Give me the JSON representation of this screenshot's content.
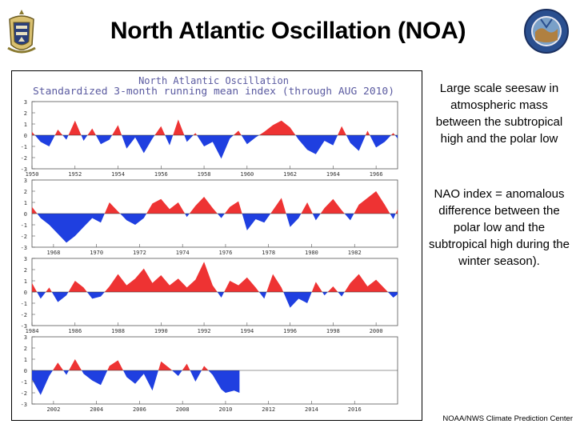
{
  "slide": {
    "title": "North Atlantic Oscillation (NOA)",
    "description_1": "Large scale seesaw in atmospheric mass between the subtropical high and the polar low",
    "description_2": "NAO index = anomalous difference between the polar low and the subtropical high during the winter season).",
    "credit": "NOAA/NWS Climate Prediction Center"
  },
  "colors": {
    "positive": "#ee3333",
    "negative": "#1f3fe0",
    "axis": "#555555",
    "title": "#5a5aa0"
  },
  "chart_data": {
    "type": "area",
    "title": "North Atlantic Oscillation",
    "subtitle": "Standardized 3-month running mean index (through AUG 2010)",
    "ylim": [
      -3,
      3
    ],
    "y_ticks": [
      3,
      2,
      1,
      0,
      -1,
      -2,
      -3
    ],
    "grid": false,
    "panels": [
      {
        "x_range": [
          1950,
          1967
        ],
        "x_tick_labels": [
          {
            "x": 1950,
            "label": "1950"
          },
          {
            "x": 1952,
            "label": "1952"
          },
          {
            "x": 1954,
            "label": "1954"
          },
          {
            "x": 1956,
            "label": "1956"
          },
          {
            "x": 1958,
            "label": "1958"
          },
          {
            "x": 1960,
            "label": "1960"
          },
          {
            "x": 1962,
            "label": "1962"
          },
          {
            "x": 1964,
            "label": "1964"
          },
          {
            "x": 1966,
            "label": "1966"
          }
        ],
        "points": [
          [
            1950.0,
            0.3
          ],
          [
            1950.4,
            -0.6
          ],
          [
            1950.8,
            -1.0
          ],
          [
            1951.2,
            0.5
          ],
          [
            1951.6,
            -0.4
          ],
          [
            1952.0,
            1.3
          ],
          [
            1952.4,
            -0.5
          ],
          [
            1952.8,
            0.6
          ],
          [
            1953.2,
            -0.8
          ],
          [
            1953.6,
            -0.4
          ],
          [
            1954.0,
            0.9
          ],
          [
            1954.4,
            -1.2
          ],
          [
            1954.8,
            -0.2
          ],
          [
            1955.2,
            -1.6
          ],
          [
            1955.6,
            -0.3
          ],
          [
            1956.0,
            0.8
          ],
          [
            1956.4,
            -0.9
          ],
          [
            1956.8,
            1.4
          ],
          [
            1957.2,
            -0.6
          ],
          [
            1957.6,
            0.2
          ],
          [
            1958.0,
            -1.0
          ],
          [
            1958.4,
            -0.6
          ],
          [
            1958.8,
            -2.1
          ],
          [
            1959.2,
            -0.3
          ],
          [
            1959.6,
            0.4
          ],
          [
            1960.0,
            -0.8
          ],
          [
            1960.4,
            -0.2
          ],
          [
            1960.8,
            0.3
          ],
          [
            1961.2,
            0.9
          ],
          [
            1961.6,
            1.3
          ],
          [
            1962.0,
            0.7
          ],
          [
            1962.4,
            -0.4
          ],
          [
            1962.8,
            -1.3
          ],
          [
            1963.2,
            -1.7
          ],
          [
            1963.6,
            -0.5
          ],
          [
            1964.0,
            -0.9
          ],
          [
            1964.4,
            0.8
          ],
          [
            1964.8,
            -0.7
          ],
          [
            1965.2,
            -1.4
          ],
          [
            1965.6,
            0.4
          ],
          [
            1966.0,
            -1.1
          ],
          [
            1966.4,
            -0.6
          ],
          [
            1966.8,
            0.2
          ],
          [
            1967.0,
            -0.3
          ]
        ]
      },
      {
        "x_range": [
          1967,
          1984
        ],
        "x_tick_labels": [
          {
            "x": 1968,
            "label": "1968"
          },
          {
            "x": 1970,
            "label": "1970"
          },
          {
            "x": 1972,
            "label": "1972"
          },
          {
            "x": 1974,
            "label": "1974"
          },
          {
            "x": 1976,
            "label": "1976"
          },
          {
            "x": 1978,
            "label": "1978"
          },
          {
            "x": 1980,
            "label": "1980"
          },
          {
            "x": 1982,
            "label": "1982"
          }
        ],
        "points": [
          [
            1967.0,
            0.6
          ],
          [
            1967.4,
            -0.4
          ],
          [
            1967.8,
            -1.0
          ],
          [
            1968.2,
            -1.8
          ],
          [
            1968.6,
            -2.6
          ],
          [
            1969.0,
            -2.0
          ],
          [
            1969.4,
            -1.2
          ],
          [
            1969.8,
            -0.4
          ],
          [
            1970.2,
            -0.8
          ],
          [
            1970.6,
            1.0
          ],
          [
            1971.0,
            0.2
          ],
          [
            1971.4,
            -0.6
          ],
          [
            1971.8,
            -1.0
          ],
          [
            1972.2,
            -0.4
          ],
          [
            1972.6,
            0.9
          ],
          [
            1973.0,
            1.3
          ],
          [
            1973.4,
            0.4
          ],
          [
            1973.8,
            1.0
          ],
          [
            1974.2,
            -0.3
          ],
          [
            1974.6,
            0.7
          ],
          [
            1975.0,
            1.5
          ],
          [
            1975.4,
            0.5
          ],
          [
            1975.8,
            -0.4
          ],
          [
            1976.2,
            0.6
          ],
          [
            1976.6,
            1.1
          ],
          [
            1977.0,
            -1.5
          ],
          [
            1977.4,
            -0.5
          ],
          [
            1977.8,
            -0.8
          ],
          [
            1978.2,
            0.3
          ],
          [
            1978.6,
            1.4
          ],
          [
            1979.0,
            -1.2
          ],
          [
            1979.4,
            -0.4
          ],
          [
            1979.8,
            1.0
          ],
          [
            1980.2,
            -0.6
          ],
          [
            1980.6,
            0.5
          ],
          [
            1981.0,
            1.3
          ],
          [
            1981.4,
            0.3
          ],
          [
            1981.8,
            -0.6
          ],
          [
            1982.2,
            0.8
          ],
          [
            1982.6,
            1.4
          ],
          [
            1983.0,
            2.0
          ],
          [
            1983.4,
            0.8
          ],
          [
            1983.8,
            -0.5
          ],
          [
            1984.0,
            0.4
          ]
        ]
      },
      {
        "x_range": [
          1984,
          2001
        ],
        "x_tick_labels": [
          {
            "x": 1984,
            "label": "1984"
          },
          {
            "x": 1986,
            "label": "1986"
          },
          {
            "x": 1988,
            "label": "1988"
          },
          {
            "x": 1990,
            "label": "1990"
          },
          {
            "x": 1992,
            "label": "1992"
          },
          {
            "x": 1994,
            "label": "1994"
          },
          {
            "x": 1996,
            "label": "1996"
          },
          {
            "x": 1998,
            "label": "1998"
          },
          {
            "x": 2000,
            "label": "2000"
          }
        ],
        "points": [
          [
            1984.0,
            0.8
          ],
          [
            1984.4,
            -0.6
          ],
          [
            1984.8,
            0.4
          ],
          [
            1985.2,
            -0.9
          ],
          [
            1985.6,
            -0.3
          ],
          [
            1986.0,
            1.0
          ],
          [
            1986.4,
            0.4
          ],
          [
            1986.8,
            -0.6
          ],
          [
            1987.2,
            -0.4
          ],
          [
            1987.6,
            0.5
          ],
          [
            1988.0,
            1.6
          ],
          [
            1988.4,
            0.6
          ],
          [
            1988.8,
            1.2
          ],
          [
            1989.2,
            2.1
          ],
          [
            1989.6,
            0.8
          ],
          [
            1990.0,
            1.5
          ],
          [
            1990.4,
            0.6
          ],
          [
            1990.8,
            1.2
          ],
          [
            1991.2,
            0.4
          ],
          [
            1991.6,
            1.1
          ],
          [
            1992.0,
            2.7
          ],
          [
            1992.4,
            0.6
          ],
          [
            1992.8,
            -0.5
          ],
          [
            1993.2,
            1.0
          ],
          [
            1993.6,
            0.6
          ],
          [
            1994.0,
            1.3
          ],
          [
            1994.4,
            0.4
          ],
          [
            1994.8,
            -0.6
          ],
          [
            1995.2,
            1.6
          ],
          [
            1995.6,
            0.4
          ],
          [
            1996.0,
            -1.4
          ],
          [
            1996.4,
            -0.6
          ],
          [
            1996.8,
            -1.0
          ],
          [
            1997.2,
            0.9
          ],
          [
            1997.6,
            -0.3
          ],
          [
            1998.0,
            0.5
          ],
          [
            1998.4,
            -0.4
          ],
          [
            1998.8,
            0.8
          ],
          [
            1999.2,
            1.6
          ],
          [
            1999.6,
            0.5
          ],
          [
            2000.0,
            1.1
          ],
          [
            2000.4,
            0.3
          ],
          [
            2000.8,
            -0.5
          ],
          [
            2001.0,
            -0.2
          ]
        ]
      },
      {
        "x_range": [
          2001,
          2018
        ],
        "x_tick_labels": [
          {
            "x": 2002,
            "label": "2002"
          },
          {
            "x": 2004,
            "label": "2004"
          },
          {
            "x": 2006,
            "label": "2006"
          },
          {
            "x": 2008,
            "label": "2008"
          },
          {
            "x": 2010,
            "label": "2010"
          },
          {
            "x": 2012,
            "label": "2012"
          },
          {
            "x": 2014,
            "label": "2014"
          },
          {
            "x": 2016,
            "label": "2016"
          }
        ],
        "points": [
          [
            2001.0,
            -0.8
          ],
          [
            2001.4,
            -2.2
          ],
          [
            2001.8,
            -0.5
          ],
          [
            2002.2,
            0.7
          ],
          [
            2002.6,
            -0.4
          ],
          [
            2003.0,
            1.0
          ],
          [
            2003.4,
            -0.3
          ],
          [
            2003.8,
            -0.9
          ],
          [
            2004.2,
            -1.3
          ],
          [
            2004.6,
            0.4
          ],
          [
            2005.0,
            0.9
          ],
          [
            2005.4,
            -0.6
          ],
          [
            2005.8,
            -1.2
          ],
          [
            2006.2,
            -0.3
          ],
          [
            2006.6,
            -1.8
          ],
          [
            2007.0,
            0.8
          ],
          [
            2007.4,
            0.2
          ],
          [
            2007.8,
            -0.5
          ],
          [
            2008.2,
            0.6
          ],
          [
            2008.6,
            -1.0
          ],
          [
            2009.0,
            0.4
          ],
          [
            2009.4,
            -0.4
          ],
          [
            2009.8,
            -1.7
          ],
          [
            2010.0,
            -2.0
          ],
          [
            2010.4,
            -1.8
          ],
          [
            2010.65,
            -2.0
          ]
        ]
      }
    ]
  }
}
